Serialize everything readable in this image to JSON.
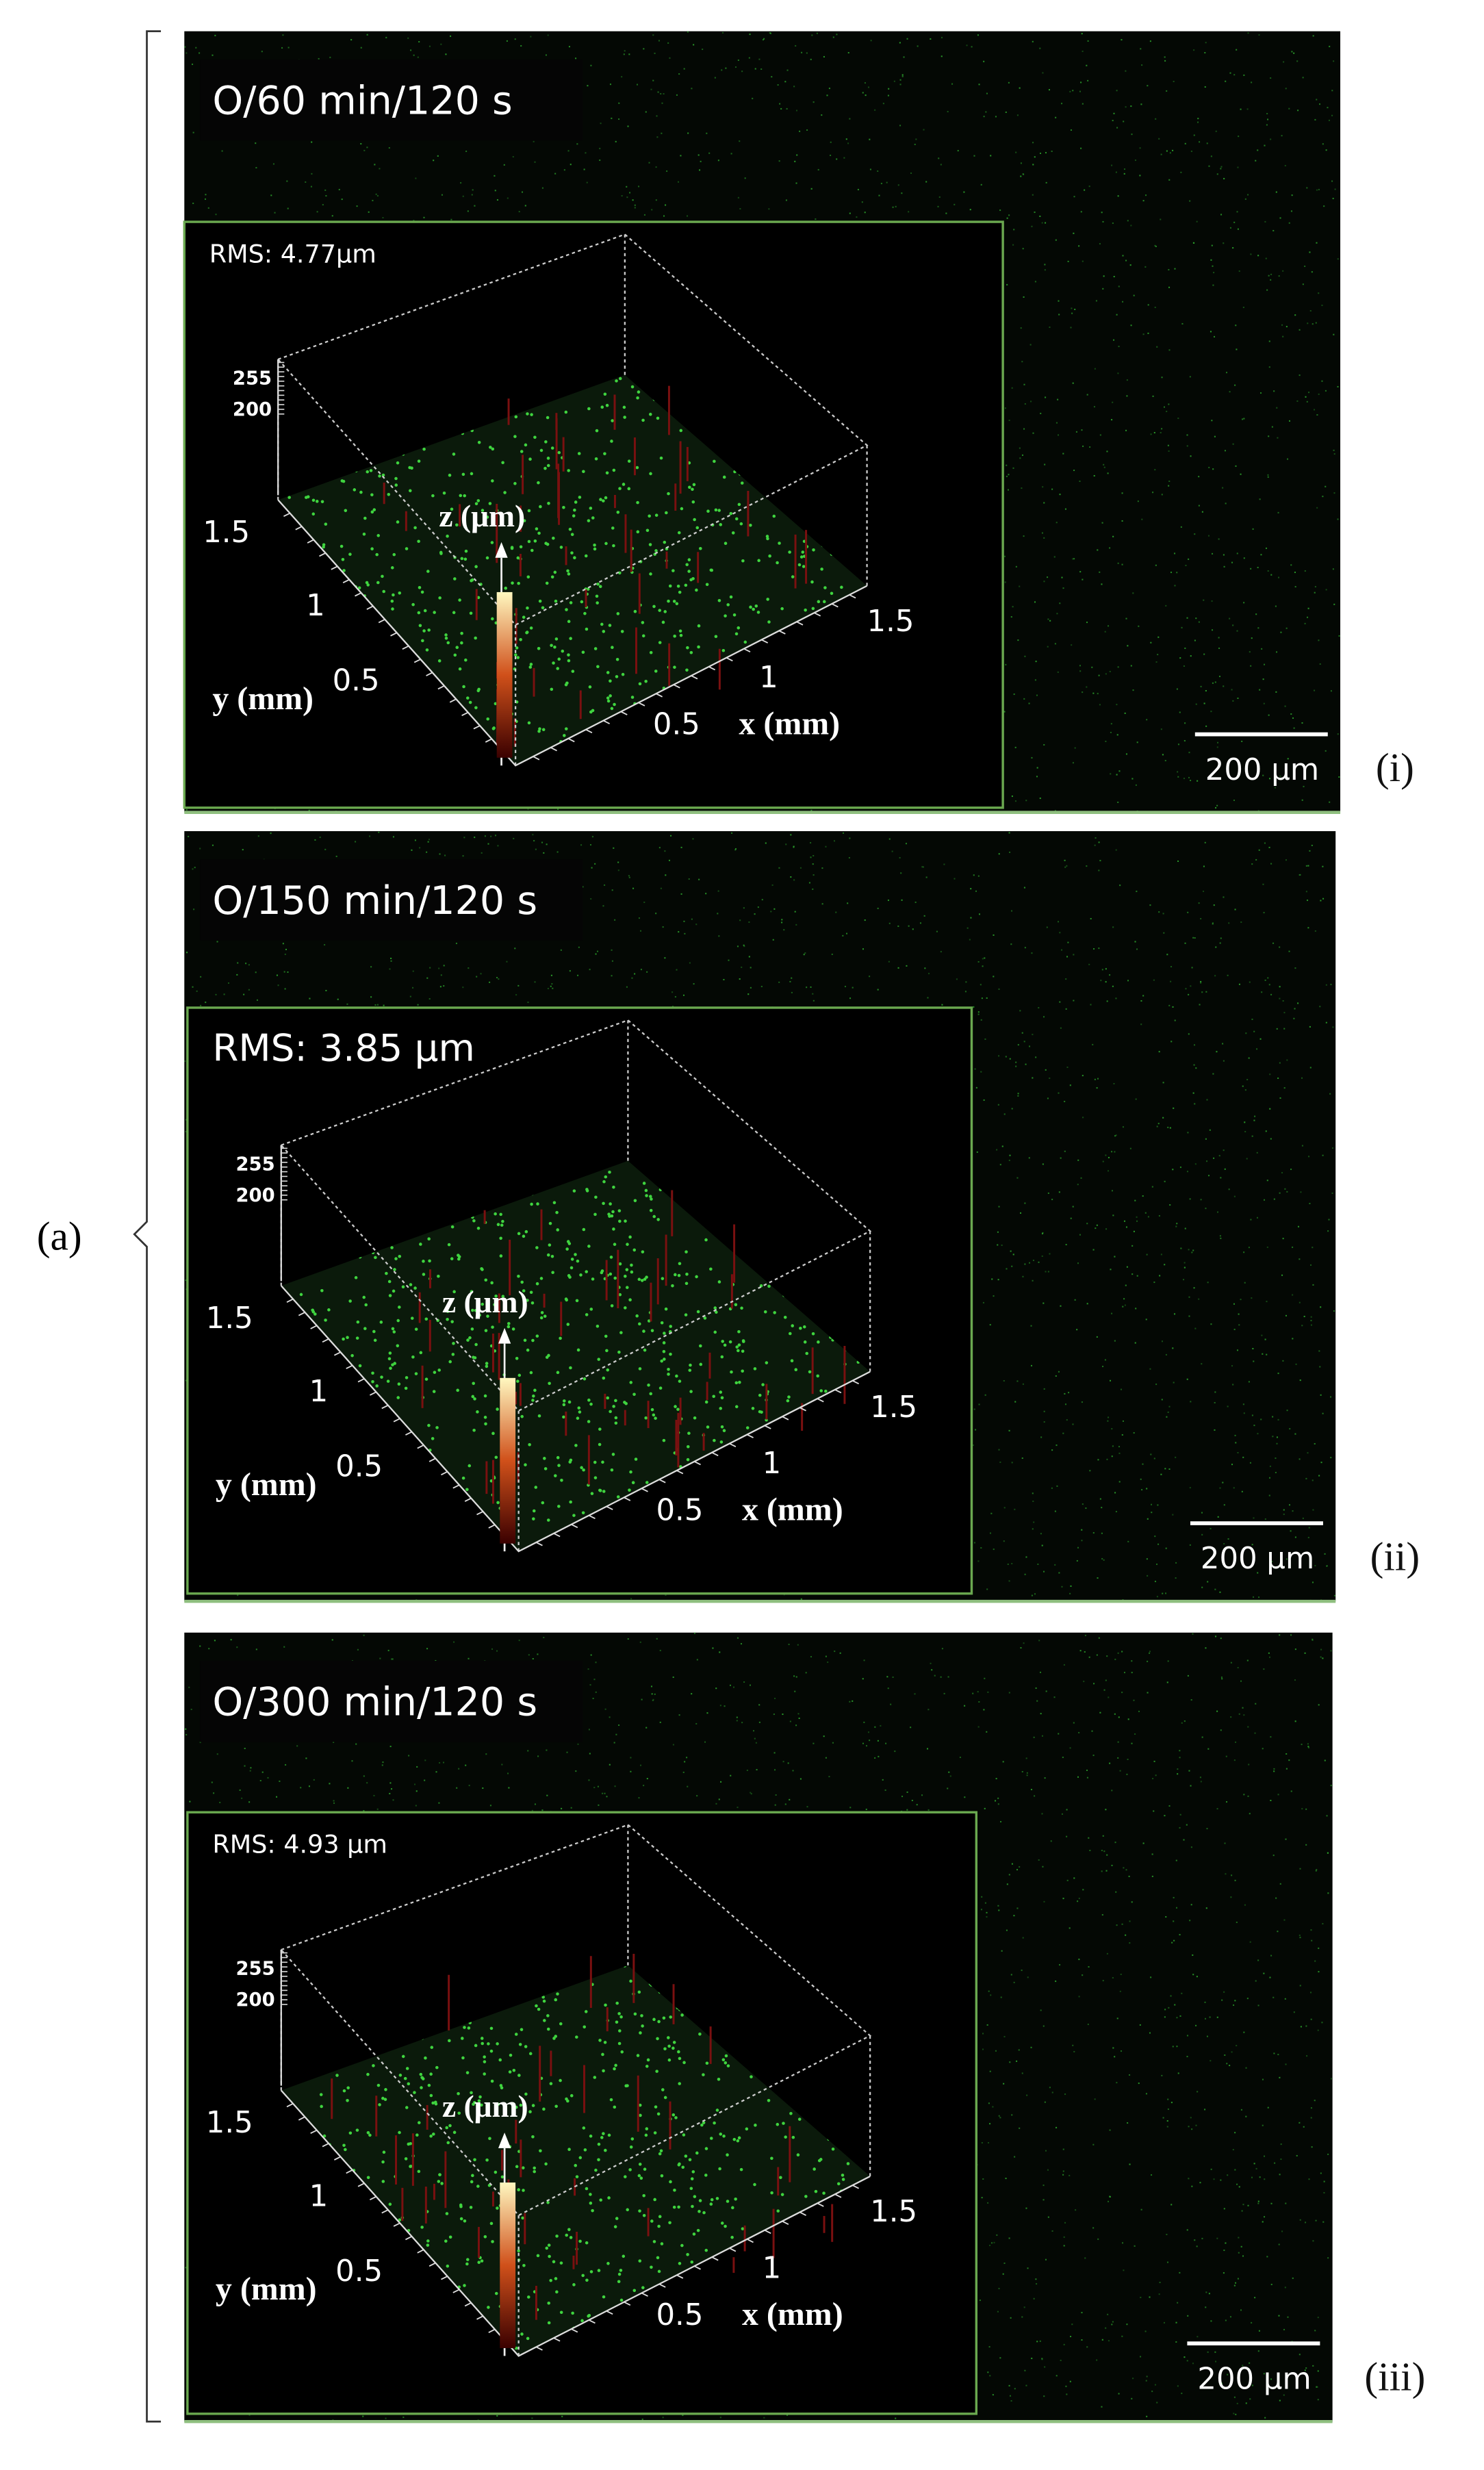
{
  "label": "(a)",
  "panels": [
    {
      "title": "O/60 min/120 s",
      "rms": "RMS: 4.77μm",
      "colorbar_ticks": [
        "255",
        "200"
      ],
      "y_ticks": [
        "1.5",
        "1",
        "0.5"
      ],
      "x_ticks": [
        "0.5",
        "1",
        "1.5"
      ],
      "z_label": "z (μm)",
      "y_label": "y (mm)",
      "x_label": "x (mm)",
      "scale_bar": "200 μm",
      "tag": "(i)"
    },
    {
      "title": "O/150 min/120 s",
      "rms": "RMS: 3.85 μm",
      "colorbar_ticks": [
        "255",
        "200"
      ],
      "y_ticks": [
        "1.5",
        "1",
        "0.5"
      ],
      "x_ticks": [
        "0.5",
        "1",
        "1.5"
      ],
      "z_label": "z (μm)",
      "y_label": "y (mm)",
      "x_label": "x (mm)",
      "scale_bar": "200 μm",
      "tag": "(ii)"
    },
    {
      "title": "O/300 min/120 s",
      "rms": "RMS: 4.93 μm",
      "colorbar_ticks": [
        "255",
        "200"
      ],
      "y_ticks": [
        "1.5",
        "1",
        "0.5"
      ],
      "x_ticks": [
        "0.5",
        "1",
        "1.5"
      ],
      "z_label": "z (μm)",
      "y_label": "y (mm)",
      "x_label": "x (mm)",
      "scale_bar": "200 μm",
      "tag": "(iii)"
    }
  ]
}
